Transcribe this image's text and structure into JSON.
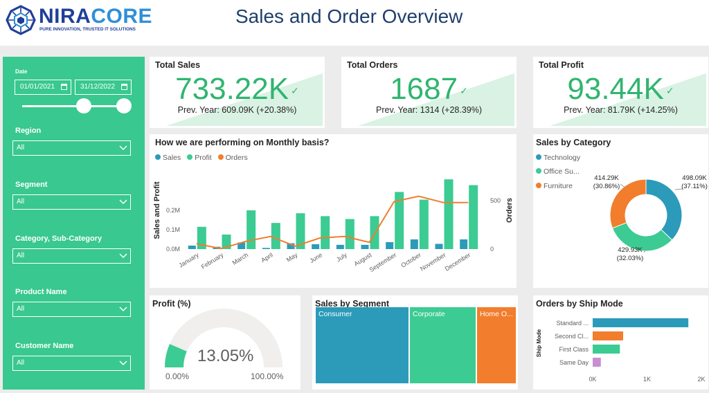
{
  "brand": {
    "name_a": "NIRA",
    "name_b": "CORE",
    "tagline": "PURE INNOVATION, TRUSTED IT SOLUTIONS"
  },
  "page_title": "Sales and Order Overview",
  "colors": {
    "sales": "#2c9bba",
    "profit": "#3ccb93",
    "orders": "#f27d2c",
    "sidebar": "#39c88f",
    "kpi": "#2fb56f",
    "same_day": "#c78fd1"
  },
  "filters": {
    "date_label": "Date",
    "date_start": "01/01/2021",
    "date_end": "31/12/2022",
    "region_label": "Region",
    "region_value": "All",
    "segment_label": "Segment",
    "segment_value": "All",
    "category_label": "Category, Sub-Category",
    "category_value": "All",
    "product_label": "Product Name",
    "product_value": "All",
    "customer_label": "Customer Name",
    "customer_value": "All"
  },
  "kpis": [
    {
      "title": "Total Sales",
      "value": "733.22K",
      "prev": "Prev. Year: 609.09K (+20.38%)"
    },
    {
      "title": "Total Orders",
      "value": "1687",
      "prev": "Prev. Year: 1314 (+28.39%)"
    },
    {
      "title": "Total Profit",
      "value": "93.44K",
      "prev": "Prev. Year: 81.79K (+14.25%)"
    }
  ],
  "monthly": {
    "title": "How we are performing on Monthly basis?",
    "legend": [
      "Sales",
      "Profit",
      "Orders"
    ]
  },
  "category": {
    "title": "Sales by Category",
    "legend": [
      "Technology",
      "Office Su...",
      "Furniture"
    ],
    "labels": [
      {
        "value": "498.09K",
        "pct": "(37.11%)"
      },
      {
        "value": "429.93K",
        "pct": "(32.03%)"
      },
      {
        "value": "414.29K",
        "pct": "(30.86%)"
      }
    ]
  },
  "profit_gauge": {
    "title": "Profit (%)",
    "value": "13.05%",
    "min": "0.00%",
    "max": "100.00%",
    "fraction": 0.1305
  },
  "segment": {
    "title": "Sales by Segment",
    "blocks": [
      "Consumer",
      "Corporate",
      "Home O..."
    ]
  },
  "ship": {
    "title": "Orders by Ship Mode",
    "axis_title": "Ship Mode"
  },
  "chart_data": [
    {
      "type": "bar",
      "title": "How we are performing on Monthly basis?",
      "xlabel": "",
      "ylabel": "Sales and Profit",
      "y2label": "Orders",
      "categories": [
        "January",
        "February",
        "March",
        "April",
        "May",
        "June",
        "July",
        "August",
        "September",
        "October",
        "November",
        "December"
      ],
      "series": [
        {
          "name": "Sales",
          "values": [
            0.018,
            0.012,
            0.034,
            0.006,
            0.03,
            0.025,
            0.022,
            0.022,
            0.036,
            0.05,
            0.027,
            0.05
          ]
        },
        {
          "name": "Profit",
          "values": [
            0.115,
            0.075,
            0.2,
            0.135,
            0.185,
            0.17,
            0.155,
            0.17,
            0.295,
            0.255,
            0.36,
            0.33
          ]
        },
        {
          "name": "Orders",
          "axis": "secondary",
          "values": [
            55,
            5,
            80,
            130,
            30,
            115,
            130,
            70,
            490,
            545,
            480,
            480
          ]
        }
      ],
      "yticks": [
        "0.0M",
        "0.1M",
        "0.2M"
      ],
      "y2ticks": [
        "0",
        "500"
      ],
      "ylim": [
        0,
        0.4
      ],
      "y2lim": [
        0,
        800
      ],
      "legend_position": "top-left"
    },
    {
      "type": "pie",
      "title": "Sales by Category",
      "categories": [
        "Technology",
        "Office Su...",
        "Furniture"
      ],
      "values": [
        498.09,
        429.93,
        414.29
      ],
      "percent": [
        37.11,
        32.03,
        30.86
      ],
      "legend_position": "top-left"
    },
    {
      "type": "bar",
      "orientation": "horizontal",
      "title": "Orders by Ship Mode",
      "ylabel": "Ship Mode",
      "categories": [
        "Standard ...",
        "Second Cl...",
        "First Class",
        "Same Day"
      ],
      "values": [
        1760,
        560,
        500,
        150
      ],
      "xticks": [
        "0K",
        "1K",
        "2K"
      ],
      "xlim": [
        0,
        2000
      ]
    },
    {
      "type": "treemap",
      "title": "Sales by Segment",
      "categories": [
        "Consumer",
        "Corporate",
        "Home O..."
      ],
      "values": [
        370,
        230,
        133
      ]
    }
  ]
}
